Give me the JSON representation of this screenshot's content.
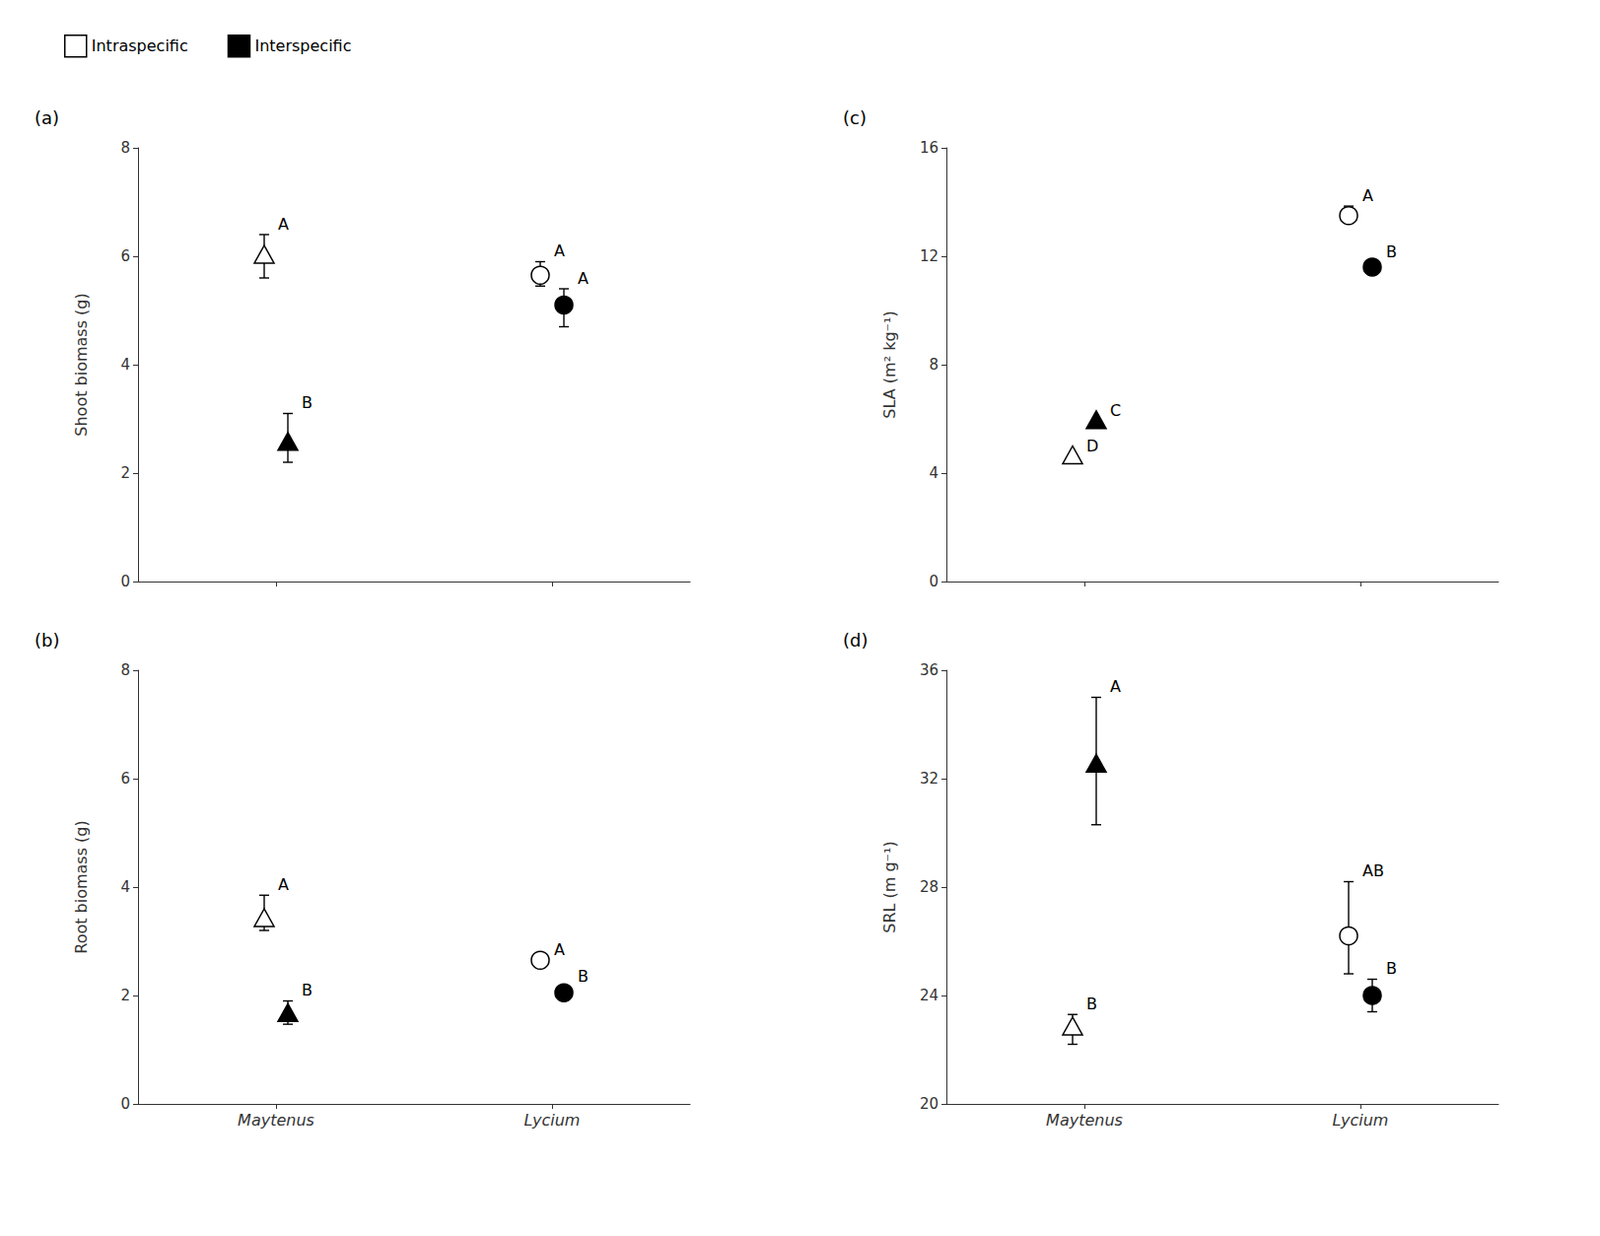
{
  "chart_data": [
    {
      "type": "scatter",
      "title": "(a)",
      "ylabel": "Shoot biomass (g)",
      "categories": [
        "Maytenus",
        "Lycium"
      ],
      "ylim": [
        0,
        8
      ],
      "yticks": [
        0,
        2,
        4,
        6,
        8
      ],
      "grid": false,
      "legend": "upper left",
      "tick_labels": "y",
      "series": [
        {
          "name": "Intraspecific",
          "color": "#ffffff",
          "values": [
            6.0,
            5.65
          ],
          "err_low": [
            0.4,
            0.2
          ],
          "err_high": [
            0.4,
            0.25
          ],
          "annotations": [
            "A",
            "A"
          ]
        },
        {
          "name": "Interspecific",
          "color": "#000000",
          "values": [
            2.55,
            5.1
          ],
          "err_low": [
            0.35,
            0.4
          ],
          "err_high": [
            0.55,
            0.3
          ],
          "annotations": [
            "B",
            "A"
          ]
        }
      ]
    },
    {
      "type": "scatter",
      "title": "(c)",
      "ylabel": "SLA (m² kg⁻¹)",
      "categories": [
        "Maytenus",
        "Lycium"
      ],
      "ylim": [
        0,
        16
      ],
      "yticks": [
        0,
        4,
        8,
        12,
        16
      ],
      "grid": false,
      "tick_labels": "y",
      "series": [
        {
          "name": "Intraspecific",
          "color": "#ffffff",
          "values": [
            4.6,
            13.5
          ],
          "err_low": [
            0.0,
            0.25
          ],
          "err_high": [
            0.0,
            0.35
          ],
          "annotations": [
            "D",
            "A"
          ]
        },
        {
          "name": "Interspecific",
          "color": "#000000",
          "values": [
            5.9,
            11.6
          ],
          "err_low": [
            0.0,
            0.15
          ],
          "err_high": [
            0.0,
            0.15
          ],
          "annotations": [
            "C",
            "B"
          ]
        }
      ]
    },
    {
      "type": "scatter",
      "title": "(b)",
      "ylabel": "Root biomass (g)",
      "categories": [
        "Maytenus",
        "Lycium"
      ],
      "ylim": [
        0,
        8
      ],
      "yticks": [
        0,
        2,
        4,
        6,
        8
      ],
      "grid": false,
      "series": [
        {
          "name": "Intraspecific",
          "color": "#ffffff",
          "values": [
            3.4,
            2.65
          ],
          "err_low": [
            0.2,
            0.0
          ],
          "err_high": [
            0.45,
            0.0
          ],
          "annotations": [
            "A",
            "A"
          ]
        },
        {
          "name": "Interspecific",
          "color": "#000000",
          "values": [
            1.65,
            2.05
          ],
          "err_low": [
            0.18,
            0.1
          ],
          "err_high": [
            0.25,
            0.1
          ],
          "annotations": [
            "B",
            "B"
          ]
        }
      ]
    },
    {
      "type": "scatter",
      "title": "(d)",
      "ylabel": "SRL (m g⁻¹)",
      "categories": [
        "Maytenus",
        "Lycium"
      ],
      "ylim": [
        20,
        36
      ],
      "yticks": [
        20,
        24,
        28,
        32,
        36
      ],
      "grid": false,
      "series": [
        {
          "name": "Intraspecific",
          "color": "#ffffff",
          "values": [
            22.8,
            26.2
          ],
          "err_low": [
            0.6,
            1.4
          ],
          "err_high": [
            0.5,
            2.0
          ],
          "annotations": [
            "B",
            "AB"
          ]
        },
        {
          "name": "Interspecific",
          "color": "#000000",
          "values": [
            32.5,
            24.0
          ],
          "err_low": [
            2.2,
            0.6
          ],
          "err_high": [
            2.5,
            0.6
          ],
          "annotations": [
            "A",
            "B"
          ]
        }
      ]
    }
  ]
}
